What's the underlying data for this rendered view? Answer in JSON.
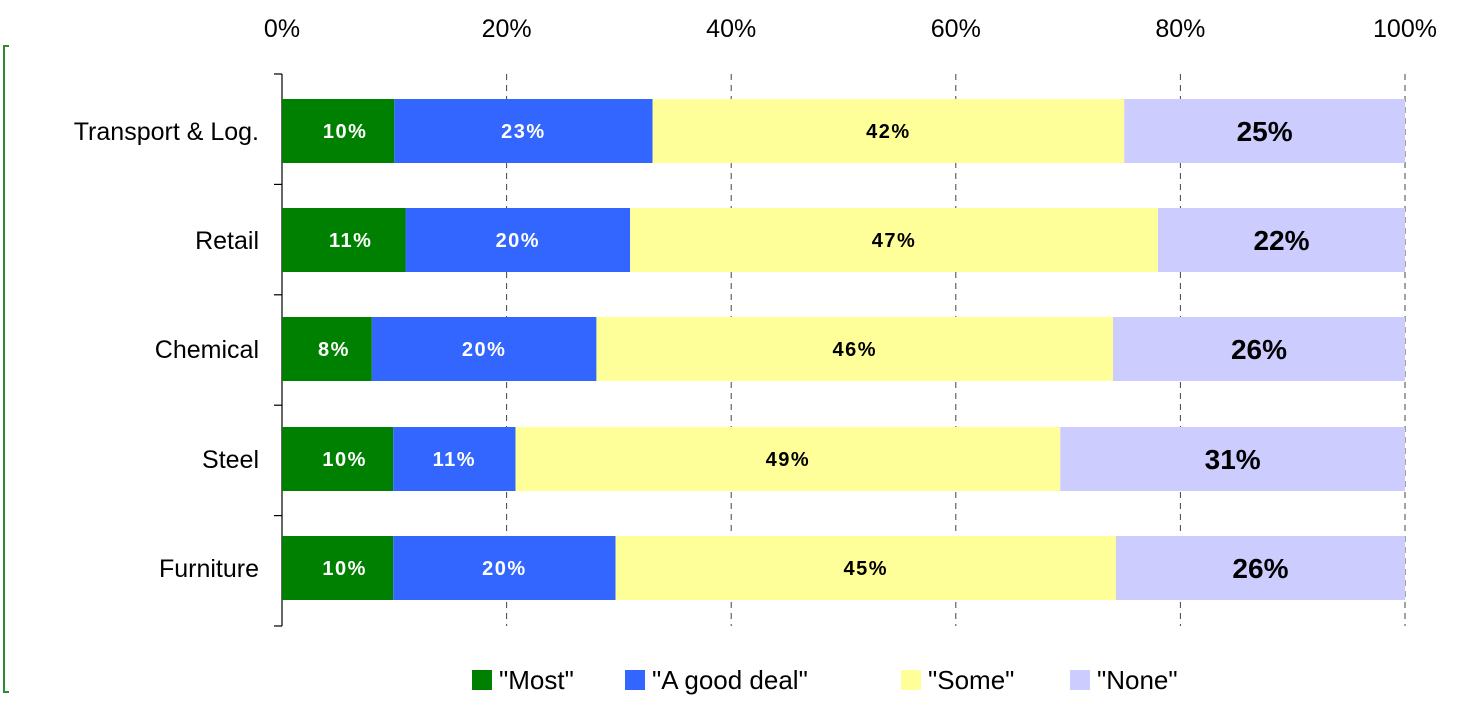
{
  "chart_data": {
    "type": "bar",
    "orientation": "horizontal",
    "stacked": "percent",
    "categories": [
      "Transport & Log.",
      "Retail",
      "Chemical",
      "Steel",
      "Furniture"
    ],
    "series": [
      {
        "name": "\"Most\"",
        "color": "#008000",
        "values": [
          10,
          11,
          8,
          10,
          10
        ],
        "labels": [
          "10%",
          "11%",
          "8%",
          "10%",
          "10%"
        ],
        "label_color": "#ffffff"
      },
      {
        "name": "\"A good deal\"",
        "color": "#3366ff",
        "values": [
          23,
          20,
          20,
          11,
          20
        ],
        "labels": [
          "23%",
          "20%",
          "20%",
          "11%",
          "20%"
        ],
        "label_color": "#ffffff"
      },
      {
        "name": "\"Some\"",
        "color": "#ffff99",
        "values": [
          42,
          47,
          46,
          49,
          45
        ],
        "labels": [
          "42%",
          "47%",
          "46%",
          "49%",
          "45%"
        ],
        "label_color": "#000000"
      },
      {
        "name": "\"None\"",
        "color": "#ccccff",
        "values": [
          25,
          22,
          26,
          31,
          26
        ],
        "labels": [
          "25%",
          "22%",
          "26%",
          "31%",
          "26%"
        ],
        "label_color": "#000000"
      }
    ],
    "x_ticks": [
      "0%",
      "20%",
      "40%",
      "60%",
      "80%",
      "100%"
    ],
    "xlim": [
      0,
      100
    ],
    "x_axis_position": "top",
    "grid": "vertical dashed",
    "legend": "bottom",
    "title": "",
    "xlabel": "",
    "ylabel": ""
  }
}
